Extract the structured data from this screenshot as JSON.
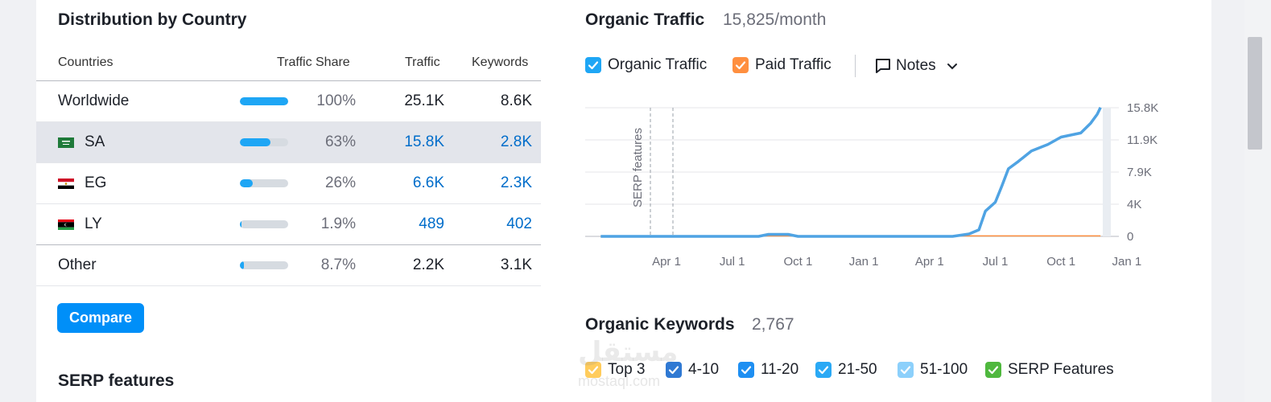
{
  "distribution": {
    "title": "Distribution by Country",
    "columns": {
      "countries": "Countries",
      "share": "Traffic Share",
      "traffic": "Traffic",
      "keywords": "Keywords"
    },
    "rows": [
      {
        "name": "Worldwide",
        "flag": "",
        "share_pct": 100,
        "share": "100%",
        "traffic": "25.1K",
        "keywords": "8.6K",
        "link": false,
        "highlight": false
      },
      {
        "name": "SA",
        "flag": "sa-flag-icon",
        "share_pct": 63,
        "share": "63%",
        "traffic": "15.8K",
        "keywords": "2.8K",
        "link": true,
        "highlight": true
      },
      {
        "name": "EG",
        "flag": "eg-flag-icon",
        "share_pct": 26,
        "share": "26%",
        "traffic": "6.6K",
        "keywords": "2.3K",
        "link": true,
        "highlight": false
      },
      {
        "name": "LY",
        "flag": "ly-flag-icon",
        "share_pct": 1.9,
        "share": "1.9%",
        "traffic": "489",
        "keywords": "402",
        "link": true,
        "highlight": false
      },
      {
        "name": "Other",
        "flag": "",
        "share_pct": 8.7,
        "share": "8.7%",
        "traffic": "2.2K",
        "keywords": "3.1K",
        "link": false,
        "highlight": false
      }
    ],
    "compare_label": "Compare"
  },
  "serp": {
    "title": "SERP features"
  },
  "organic_traffic": {
    "title": "Organic Traffic",
    "value": "15,825/month",
    "legend": [
      {
        "label": "Organic Traffic",
        "color": "#1ea6f5",
        "checked": true
      },
      {
        "label": "Paid Traffic",
        "color": "#ff8f3f",
        "checked": true
      }
    ],
    "notes_label": "Notes"
  },
  "chart_data": {
    "type": "line",
    "title": "Organic Traffic",
    "annotation": "SERP features",
    "x_labels": [
      "Apr 1",
      "Jul 1",
      "Oct 1",
      "Jan 1",
      "Apr 1",
      "Jul 1",
      "Oct 1",
      "Jan 1"
    ],
    "y_labels": [
      "15.8K",
      "11.9K",
      "7.9K",
      "4K",
      "0"
    ],
    "ylim": [
      0,
      15800
    ],
    "series": [
      {
        "name": "Organic Traffic",
        "color": "#4fa3e3",
        "points": [
          [
            0,
            0
          ],
          [
            0.5,
            0
          ],
          [
            1,
            0
          ],
          [
            1.5,
            0
          ],
          [
            2.4,
            0
          ],
          [
            2.55,
            250
          ],
          [
            2.85,
            250
          ],
          [
            3,
            0
          ],
          [
            3.5,
            0
          ],
          [
            4,
            0
          ],
          [
            4.5,
            0
          ],
          [
            5.0,
            0
          ],
          [
            5.35,
            0
          ],
          [
            5.6,
            300
          ],
          [
            5.75,
            800
          ],
          [
            5.85,
            3100
          ],
          [
            6.0,
            4200
          ],
          [
            6.1,
            6200
          ],
          [
            6.2,
            8300
          ],
          [
            6.35,
            9200
          ],
          [
            6.55,
            10500
          ],
          [
            6.8,
            11300
          ],
          [
            7.0,
            12200
          ],
          [
            7.3,
            12700
          ],
          [
            7.45,
            13900
          ],
          [
            7.55,
            15000
          ],
          [
            7.6,
            15825
          ]
        ]
      },
      {
        "name": "Paid Traffic",
        "color": "#ff8f3f",
        "points": [
          [
            0,
            0
          ],
          [
            2.6,
            60
          ],
          [
            2.9,
            60
          ],
          [
            3.0,
            0
          ],
          [
            5.2,
            0
          ],
          [
            5.35,
            60
          ],
          [
            7.6,
            60
          ]
        ]
      }
    ]
  },
  "organic_keywords": {
    "title": "Organic Keywords",
    "value": "2,767",
    "legend": [
      {
        "label": "Top 3",
        "color": "#ffcc5c",
        "checked": true
      },
      {
        "label": "4-10",
        "color": "#2f79d3",
        "checked": true
      },
      {
        "label": "11-20",
        "color": "#1e8ff2",
        "checked": true
      },
      {
        "label": "21-50",
        "color": "#2aa9f5",
        "checked": true
      },
      {
        "label": "51-100",
        "color": "#8cd0fb",
        "checked": true
      },
      {
        "label": "SERP Features",
        "color": "#4fb83e",
        "checked": true
      }
    ]
  },
  "watermark": {
    "text": "مستقل",
    "sub": "mostaql.com"
  }
}
